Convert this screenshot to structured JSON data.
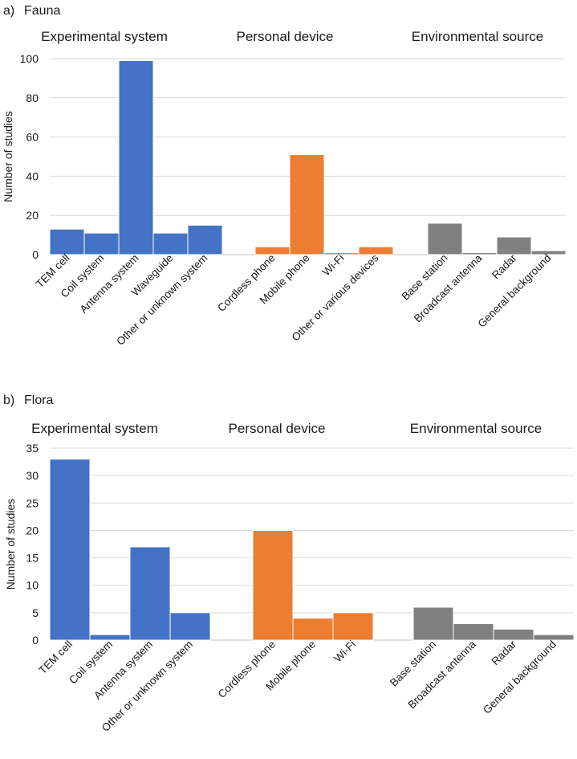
{
  "colors": {
    "experimental": "#4472c4",
    "personal": "#ed7d31",
    "environmental": "#808080",
    "grid": "#d9d9d9",
    "axis": "#bfbfbf"
  },
  "chart_data": [
    {
      "type": "bar",
      "panel_label": "a)",
      "title": "Fauna",
      "ylabel": "Number of studies",
      "ylim": [
        0,
        100
      ],
      "yticks": [
        0,
        20,
        40,
        60,
        80,
        100
      ],
      "groups": [
        {
          "name": "Experimental system",
          "color_key": "experimental",
          "categories": [
            "TEM cell",
            "Coil system",
            "Antenna  system",
            "Waveguide",
            "Other or unknown system"
          ],
          "values": [
            13,
            11,
            99,
            11,
            15
          ]
        },
        {
          "name": "Personal device",
          "color_key": "personal",
          "categories": [
            "Cordless phone",
            "Mobile phone",
            "Wi-Fi",
            "Other or various devices"
          ],
          "values": [
            4,
            51,
            1,
            4
          ]
        },
        {
          "name": "Environmental source",
          "color_key": "environmental",
          "categories": [
            "Base station",
            "Broadcast antenna",
            "Radar",
            "General background"
          ],
          "values": [
            16,
            1,
            9,
            2
          ]
        }
      ]
    },
    {
      "type": "bar",
      "panel_label": "b)",
      "title": "Flora",
      "ylabel": "Number of studies",
      "ylim": [
        0,
        35
      ],
      "yticks": [
        0,
        5,
        10,
        15,
        20,
        25,
        30,
        35
      ],
      "groups": [
        {
          "name": "Experimental system",
          "color_key": "experimental",
          "categories": [
            "TEM cell",
            "Coil system",
            "Antenna system",
            "Other or unknown  system"
          ],
          "values": [
            33,
            1,
            17,
            5
          ]
        },
        {
          "name": "Personal device",
          "color_key": "personal",
          "categories": [
            "Cordless phone",
            "Mobile phone",
            "Wi-Fi"
          ],
          "values": [
            20,
            4,
            5
          ]
        },
        {
          "name": "Environmental source",
          "color_key": "environmental",
          "categories": [
            "Base station",
            "Broadcast antenna",
            "Radar",
            "General background"
          ],
          "values": [
            6,
            3,
            2,
            1
          ]
        }
      ]
    }
  ]
}
